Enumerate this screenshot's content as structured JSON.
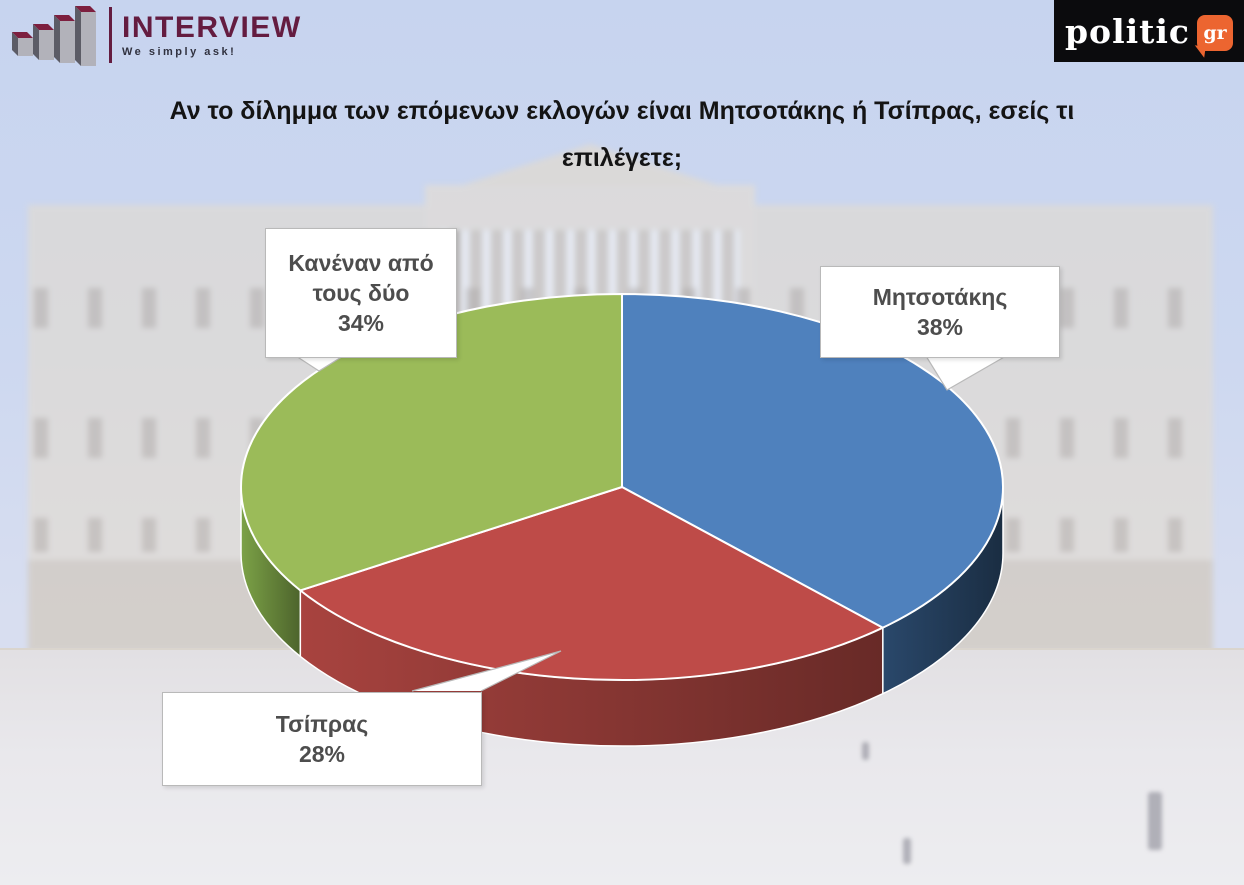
{
  "header": {
    "brand": {
      "name": "INTERVIEW",
      "tagline": "We simply ask!"
    },
    "publisher": {
      "name": "politic",
      "suffix": "gr"
    }
  },
  "title": "Αν το δίλημμα των επόμενων εκλογών είναι Μητσοτάκης ή Τσίπρας, εσείς τι επιλέγετε;",
  "chart_data": {
    "type": "pie",
    "style": "3d",
    "direction": "clockwise",
    "start_angle_deg": 0,
    "title": "Αν το δίλημμα των επόμενων εκλογών είναι Μητσοτάκης ή Τσίπρας, εσείς τι επιλέγετε;",
    "series": [
      {
        "label": "Μητσοτάκης",
        "value": 38,
        "value_label": "38%",
        "color": "#4F81BD",
        "side_color": "#2A486B"
      },
      {
        "label": "Τσίπρας",
        "value": 28,
        "value_label": "28%",
        "color": "#BE4B48",
        "side_color": "#A8433F"
      },
      {
        "label": "Κανέναν από τους δύο",
        "value": 34,
        "value_label": "34%",
        "color": "#9BBB59",
        "side_color": "#7CA247"
      }
    ]
  },
  "colors": {
    "brand_maroon": "#641C40",
    "publisher_background": "#0B0B0D",
    "publisher_accent": "#EC6530",
    "title_text": "#141414",
    "callout_text": "#4D4D4D",
    "callout_border": "#B9B9B9",
    "sky": "#C9D5EF"
  }
}
